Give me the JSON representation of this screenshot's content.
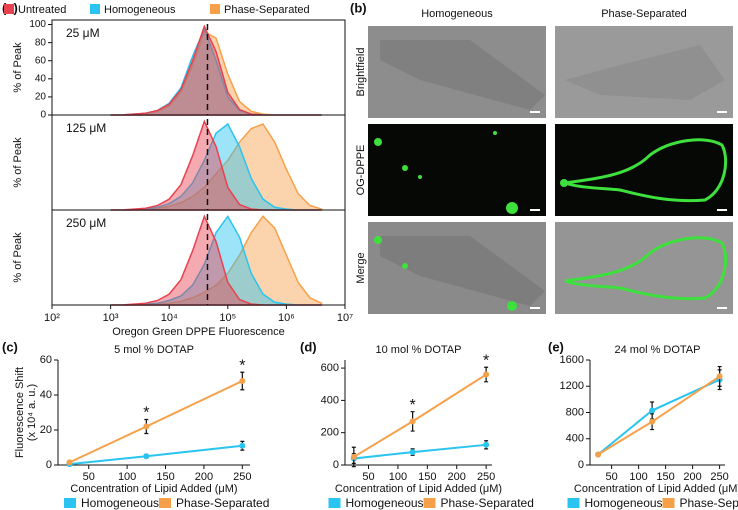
{
  "panel_labels": [
    "(a)",
    "(b)",
    "(c)",
    "(d)",
    "(e)"
  ],
  "micrographs": {
    "columns": [
      "Homogeneous",
      "Phase-Separated"
    ],
    "rows": [
      "Brightfield",
      "OG-DPPE",
      "Merge"
    ]
  },
  "chart_data": [
    {
      "type": "area",
      "xscale": "log",
      "xlabel": "Oregon Green DPPE Fluorescence",
      "xlim": [
        100,
        10000000
      ],
      "xticks": [
        {
          "value": 100,
          "label": "10²"
        },
        {
          "value": 1000,
          "label": "10³"
        },
        {
          "value": 10000,
          "label": "10⁴"
        },
        {
          "value": 100000,
          "label": "10⁵"
        },
        {
          "value": 1000000,
          "label": "10⁶"
        },
        {
          "value": 10000000,
          "label": "10⁷"
        }
      ],
      "reference_x": 45000,
      "x": [
        1000,
        1585,
        2512,
        3981,
        6310,
        10000,
        15849,
        25119,
        39811,
        63096,
        100000,
        158489,
        251189,
        398107,
        630957,
        1000000,
        1584893,
        2511886,
        3981072
      ],
      "series": [
        {
          "name": "Untreated",
          "color": "#e8414f"
        },
        {
          "name": "Homogeneous",
          "color": "#29c4f0"
        },
        {
          "name": "Phase-Separated",
          "color": "#f7a04a"
        }
      ],
      "panels": [
        {
          "annotation": "25 μM",
          "ylabel": "% of Peak",
          "ylim": [
            0,
            105
          ],
          "yticks": [
            0,
            20,
            40,
            60,
            80,
            100
          ],
          "series_values": [
            [
              0,
              0,
              1,
              2,
              5,
              12,
              28,
              60,
              98,
              70,
              25,
              6,
              1,
              0,
              0,
              0,
              0,
              0,
              0
            ],
            [
              0,
              0,
              1,
              2,
              5,
              13,
              30,
              65,
              95,
              60,
              20,
              5,
              1,
              0,
              0,
              0,
              0,
              0,
              0
            ],
            [
              0,
              0,
              1,
              2,
              4,
              10,
              25,
              55,
              92,
              85,
              45,
              15,
              4,
              1,
              0,
              0,
              0,
              0,
              0
            ]
          ]
        },
        {
          "annotation": "125 μM",
          "ylabel": "% of Peak",
          "ylim": [
            0,
            105
          ],
          "series_values": [
            [
              0,
              0,
              1,
              2,
              5,
              12,
              28,
              60,
              98,
              70,
              25,
              6,
              1,
              0,
              0,
              0,
              0,
              0,
              0
            ],
            [
              0,
              0,
              0,
              1,
              3,
              7,
              15,
              30,
              55,
              85,
              95,
              70,
              35,
              12,
              3,
              1,
              0,
              0,
              0
            ],
            [
              0,
              0,
              0,
              1,
              2,
              4,
              8,
              15,
              25,
              40,
              55,
              75,
              90,
              95,
              75,
              45,
              18,
              5,
              1
            ]
          ]
        },
        {
          "annotation": "250 μM",
          "ylabel": "% of Peak",
          "ylim": [
            0,
            105
          ],
          "series_values": [
            [
              0,
              0,
              1,
              2,
              5,
              12,
              28,
              60,
              98,
              70,
              25,
              6,
              1,
              0,
              0,
              0,
              0,
              0,
              0
            ],
            [
              0,
              0,
              0,
              1,
              2,
              5,
              10,
              22,
              45,
              80,
              98,
              75,
              35,
              12,
              3,
              1,
              0,
              0,
              0
            ],
            [
              0,
              0,
              0,
              0,
              1,
              2,
              4,
              8,
              14,
              22,
              35,
              55,
              80,
              98,
              85,
              55,
              25,
              8,
              2
            ]
          ]
        }
      ]
    },
    {
      "type": "line",
      "title": "5 mol % DOTAP",
      "xlabel": "Concentration of Lipid Added (μM)",
      "ylabel": [
        "Fluorescence Shift",
        "(x 10⁴ a. u.)"
      ],
      "x": [
        25,
        125,
        250
      ],
      "xlim": [
        10,
        260
      ],
      "xticks": [
        50,
        100,
        150,
        200,
        250
      ],
      "ylim": [
        0,
        60
      ],
      "yticks": [
        0,
        20,
        40,
        60
      ],
      "series": [
        {
          "name": "Homogeneous",
          "color": "#29c4f0",
          "values": [
            0.5,
            5,
            11
          ],
          "errors": [
            0.5,
            1,
            2.5
          ]
        },
        {
          "name": "Phase-Separated",
          "color": "#f7a04a",
          "values": [
            1.5,
            22,
            48
          ],
          "errors": [
            1,
            4,
            5
          ]
        }
      ],
      "annotations": [
        {
          "text": "*",
          "x": 125
        },
        {
          "text": "*",
          "x": 250
        }
      ]
    },
    {
      "type": "line",
      "title": "10 mol % DOTAP",
      "xlabel": "Concentration of Lipid Added (μM)",
      "x": [
        25,
        125,
        250
      ],
      "xlim": [
        10,
        260
      ],
      "xticks": [
        50,
        100,
        150,
        200,
        250
      ],
      "ylim": [
        0,
        650
      ],
      "yticks": [
        0,
        200,
        400,
        600
      ],
      "series": [
        {
          "name": "Homogeneous",
          "color": "#29c4f0",
          "values": [
            40,
            80,
            125
          ],
          "errors": [
            30,
            20,
            25
          ]
        },
        {
          "name": "Phase-Separated",
          "color": "#f7a04a",
          "values": [
            50,
            270,
            560
          ],
          "errors": [
            60,
            60,
            45
          ]
        }
      ],
      "annotations": [
        {
          "text": "*",
          "x": 125
        },
        {
          "text": "*",
          "x": 250
        }
      ]
    },
    {
      "type": "line",
      "title": "24 mol % DOTAP",
      "xlabel": "Concentration of Lipid Added (μM)",
      "x": [
        25,
        125,
        250
      ],
      "xlim": [
        10,
        260
      ],
      "xticks": [
        50,
        100,
        150,
        200,
        250
      ],
      "ylim": [
        0,
        1600
      ],
      "yticks": [
        0,
        400,
        800,
        1200,
        1600
      ],
      "series": [
        {
          "name": "Homogeneous",
          "color": "#29c4f0",
          "values": [
            160,
            830,
            1300
          ],
          "errors": [
            20,
            130,
            150
          ]
        },
        {
          "name": "Phase-Separated",
          "color": "#f7a04a",
          "values": [
            160,
            660,
            1350
          ],
          "errors": [
            20,
            120,
            150
          ]
        }
      ]
    }
  ]
}
